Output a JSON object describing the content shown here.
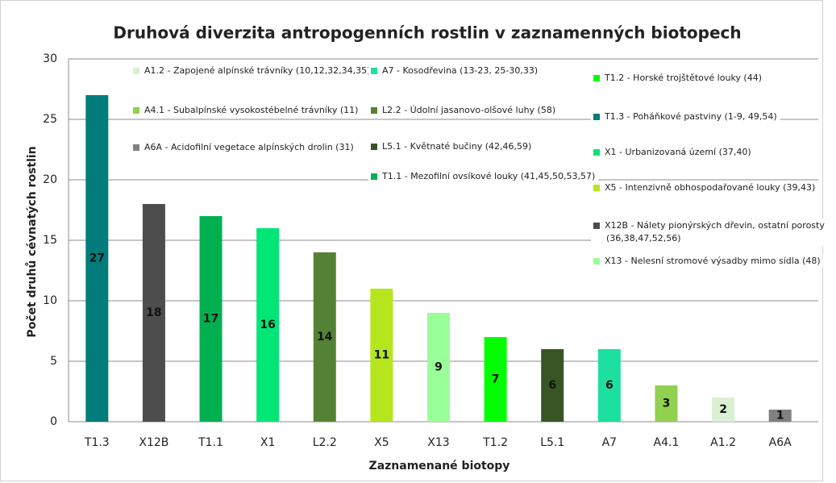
{
  "chart_data": {
    "type": "bar",
    "title": "Druhová diverzita antropogenních rostlin v zaznamenných biotopech",
    "x_label": "Zaznamenané biotopy",
    "y_label": "Počet druhů cévnatých rostlin",
    "categories": [
      "T1.3",
      "X12B",
      "T1.1",
      "X1",
      "L2.2",
      "X5",
      "X13",
      "T1.2",
      "L5.1",
      "A7",
      "A4.1",
      "A1.2",
      "A6A"
    ],
    "values": [
      27,
      18,
      17,
      16,
      14,
      11,
      9,
      7,
      6,
      6,
      3,
      2,
      1
    ],
    "colors": [
      "#007d7a",
      "#4d4d4d",
      "#00b050",
      "#00e676",
      "#548235",
      "#b5e61d",
      "#99ff99",
      "#00ff00",
      "#375623",
      "#1de0a0",
      "#92d050",
      "#d9f0d3",
      "#808080"
    ],
    "ylim": [
      0,
      30
    ],
    "yticks": [
      0,
      5,
      10,
      15,
      20,
      25,
      30
    ],
    "grid": true,
    "legend": [
      {
        "label": [
          "A1.2 - Zapojené alpínské trávníky (10,12,32,34,35)"
        ],
        "color": "#d9f0d3"
      },
      {
        "label": [
          "A4.1 - Subalpínské vysokostébelné trávníky (11)"
        ],
        "color": "#92d050"
      },
      {
        "label": [
          "A6A - Acidofilní vegetace alpínských drolin (31)"
        ],
        "color": "#808080"
      },
      {
        "label": [
          "A7 - Kosodřevina (13-23, 25-30,33)"
        ],
        "color": "#1de0a0"
      },
      {
        "label": [
          "L2.2 - Údolní jasanovo-olšové luhy (58)"
        ],
        "color": "#548235"
      },
      {
        "label": [
          "L5.1 - Květnaté bučiny (42,46,59)"
        ],
        "color": "#375623"
      },
      {
        "label": [
          "T1.1 - Mezofilní ovsíkové louky (41,45,50,53,57)"
        ],
        "color": "#00b050"
      },
      {
        "label": [
          "T1.2 - Horské trojštětové louky (44)"
        ],
        "color": "#00ff00"
      },
      {
        "label": [
          "T1.3 - Poháňkové pastviny (1-9, 49,54)"
        ],
        "color": "#007d7a"
      },
      {
        "label": [
          "X1 - Urbanizovaná území (37,40)"
        ],
        "color": "#00e676"
      },
      {
        "label": [
          "X5 - Intenzivně obhospodařované louky (39,43)"
        ],
        "color": "#b5e61d"
      },
      {
        "label": [
          "X12B - Nálety pionýrských dřevin, ostatní porosty",
          "(36,38,47,52,56)"
        ],
        "color": "#4d4d4d"
      },
      {
        "label": [
          "X13 - Nelesní stromové výsadby mimo sídla (48)"
        ],
        "color": "#99ff99"
      }
    ]
  }
}
